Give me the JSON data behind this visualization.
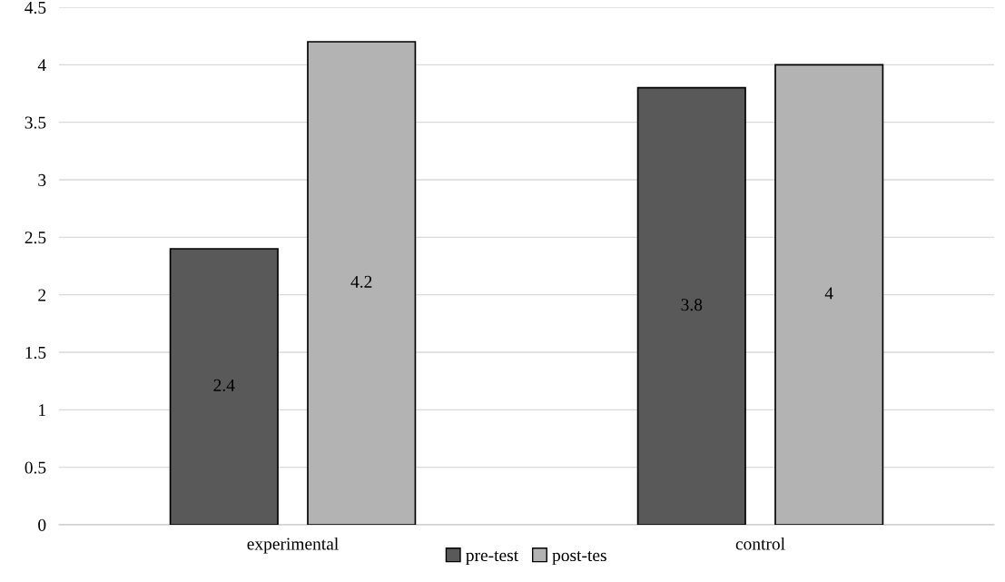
{
  "chart_data": {
    "type": "bar",
    "categories": [
      "experimental",
      "control"
    ],
    "series": [
      {
        "name": "pre-test",
        "color": "#595959",
        "values": [
          2.4,
          3.8
        ]
      },
      {
        "name": "post-tes",
        "color": "#b3b3b3",
        "values": [
          4.2,
          4
        ]
      }
    ],
    "ylim": [
      0,
      4.5
    ],
    "yticks": [
      0,
      0.5,
      1,
      1.5,
      2,
      2.5,
      3,
      3.5,
      4,
      4.5
    ],
    "grid": "y",
    "legend": "bottom",
    "data_labels": true
  }
}
